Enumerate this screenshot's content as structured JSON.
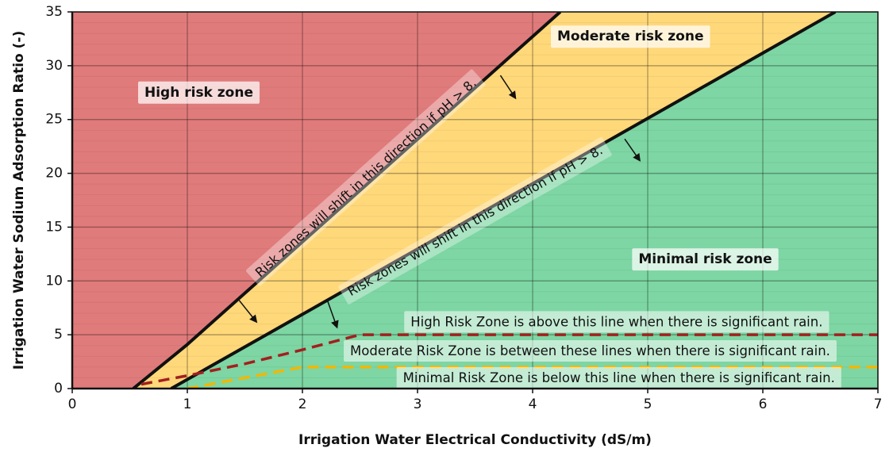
{
  "chart_data": {
    "type": "area",
    "xlabel": "Irrigation Water Electrical Conductivity (dS/m)",
    "ylabel": "Irrigation Water Sodium Adsorption Ratio (-)",
    "xlim": [
      0,
      7
    ],
    "ylim": [
      0,
      35
    ],
    "x_ticks": [
      "0",
      "1",
      "2",
      "3",
      "4",
      "5",
      "6",
      "7"
    ],
    "y_ticks": [
      "0",
      "5",
      "10",
      "15",
      "20",
      "25",
      "30",
      "35"
    ],
    "grid": true,
    "colors": {
      "high_zone": "#E07B7B",
      "moderate_zone": "#FFD87A",
      "minimal_zone": "#7DD6A3",
      "high_line": "#A31F1F",
      "moderate_line": "#F2B705",
      "boundary": "#111111"
    },
    "boundaries": [
      {
        "id": "high-boundary",
        "points": [
          [
            0.53,
            0
          ],
          [
            1.0,
            4.1
          ],
          [
            4.24,
            35
          ]
        ]
      },
      {
        "id": "moderate-boundary",
        "points": [
          [
            0.86,
            0
          ],
          [
            2.0,
            6.9
          ],
          [
            6.63,
            35
          ]
        ]
      }
    ],
    "rain_lines": [
      {
        "id": "high-rain-line",
        "color": "#A31F1F",
        "points": [
          [
            0.6,
            0.4
          ],
          [
            1.0,
            1.2
          ],
          [
            1.5,
            2.3
          ],
          [
            2.0,
            3.6
          ],
          [
            2.5,
            5.0
          ],
          [
            7.0,
            5.0
          ]
        ]
      },
      {
        "id": "moderate-rain-line",
        "color": "#F2B705",
        "points": [
          [
            1.0,
            0.0
          ],
          [
            1.5,
            1.0
          ],
          [
            2.0,
            2.0
          ],
          [
            7.0,
            2.0
          ]
        ]
      }
    ],
    "zone_labels": [
      {
        "key": "high",
        "text": "High risk zone",
        "x": 1.1,
        "y": 27.5
      },
      {
        "key": "moderate",
        "text": "Moderate risk zone",
        "x": 4.85,
        "y": 32.7
      },
      {
        "key": "minimal",
        "text": "Minimal risk zone",
        "x": 5.5,
        "y": 12.0
      }
    ],
    "rain_labels": [
      {
        "key": "above",
        "text": "High Risk Zone is above this line when there is significant rain.",
        "x": 4.73,
        "y": 6.2
      },
      {
        "key": "between",
        "text": "Moderate Risk Zone is between these lines when there is significant rain.",
        "x": 4.5,
        "y": 3.5
      },
      {
        "key": "below",
        "text": "Minimal Risk Zone is below this line when there is significant rain.",
        "x": 4.75,
        "y": 1.0
      }
    ],
    "shift_notes": [
      {
        "key": "shift-high",
        "text": "Risk zones will shift in this direction if pH > 8.",
        "x": 2.55,
        "y": 19.6
      },
      {
        "key": "shift-moderate",
        "text": "Risk zones will shift in this direction if pH > 8.",
        "x": 3.5,
        "y": 15.6
      }
    ],
    "arrows": [
      {
        "from": [
          1.45,
          8.2
        ],
        "to": [
          1.6,
          6.2
        ]
      },
      {
        "from": [
          2.22,
          8.1
        ],
        "to": [
          2.3,
          5.7
        ]
      },
      {
        "from": [
          3.72,
          29.1
        ],
        "to": [
          3.85,
          27.0
        ]
      },
      {
        "from": [
          4.8,
          23.2
        ],
        "to": [
          4.93,
          21.2
        ]
      }
    ]
  }
}
